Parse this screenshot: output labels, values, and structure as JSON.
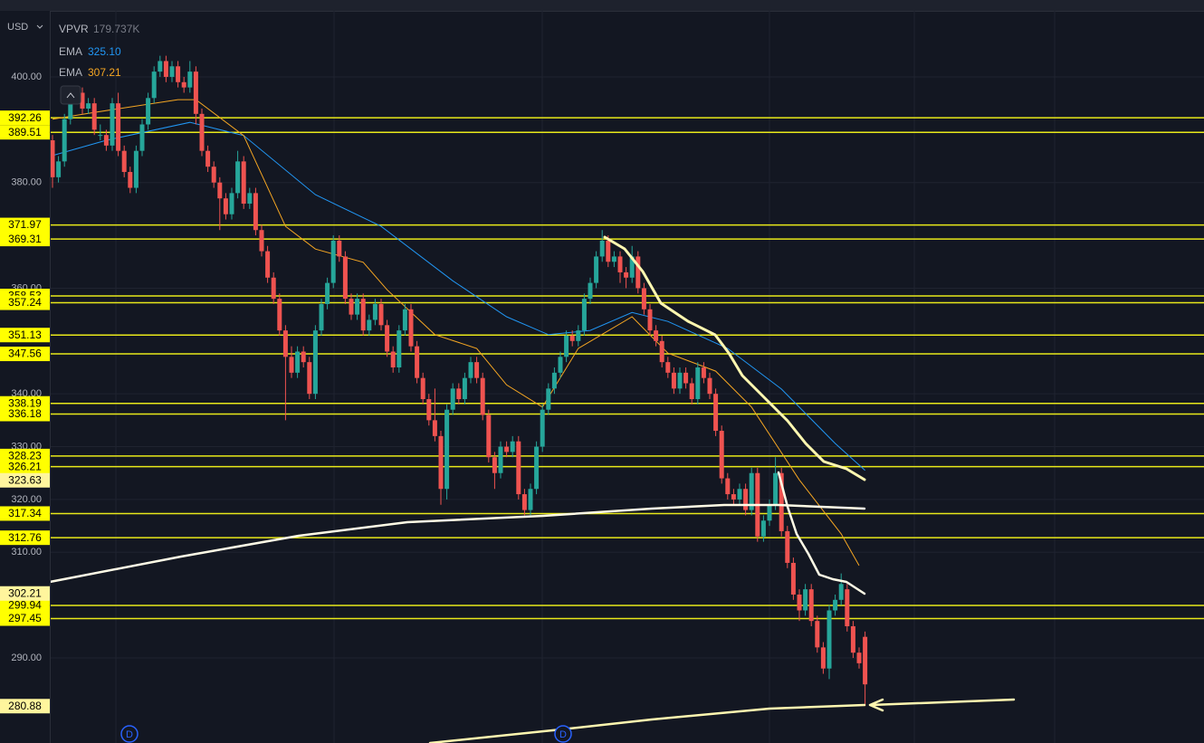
{
  "chart_data": {
    "type": "candlestick",
    "currency": "USD",
    "volume_profile": {
      "name": "VPVR",
      "value": "179.737K"
    },
    "ylim": [
      273.9,
      412.5
    ],
    "yticks": [
      {
        "value": 400,
        "label": "400.00"
      },
      {
        "value": 380,
        "label": "380.00"
      },
      {
        "value": 360,
        "label": "360.00"
      },
      {
        "value": 340,
        "label": "340.00"
      },
      {
        "value": 330,
        "label": "330.00"
      },
      {
        "value": 320,
        "label": "320.00"
      },
      {
        "value": 310,
        "label": "310.00"
      },
      {
        "value": 290,
        "label": "290.00"
      }
    ],
    "grid": true,
    "up_color": "#26a69a",
    "down_color": "#ef5350",
    "level_color": "#e8e81a",
    "levels": [
      392.26,
      389.51,
      371.97,
      369.31,
      358.53,
      357.24,
      351.13,
      347.56,
      338.19,
      336.18,
      328.23,
      326.21,
      317.34,
      312.76,
      299.94,
      297.45
    ],
    "price_labels": [
      323.63,
      302.21,
      280.88
    ],
    "events": [
      "D",
      "D"
    ],
    "emas": [
      {
        "name": "EMA",
        "value_label": "325.10",
        "color": "#2196f3",
        "x": [
          0,
          9,
          23,
          32,
          44,
          55,
          67,
          76,
          83,
          90,
          97,
          103,
          113,
          122,
          131,
          136
        ],
        "values": [
          385.1,
          388,
          391.4,
          388.9,
          377.7,
          371.7,
          361.4,
          354.6,
          351.2,
          352,
          355.4,
          353.7,
          348.6,
          340.9,
          330.6,
          325.5
        ]
      },
      {
        "name": "EMA",
        "value_label": "307.21",
        "color": "#f5a623",
        "x": [
          0,
          6,
          21,
          24,
          32,
          39,
          44,
          52,
          56,
          64,
          71,
          76,
          82,
          88,
          97,
          103,
          111,
          117,
          125,
          132,
          135
        ],
        "values": [
          392,
          393.1,
          395.7,
          395.7,
          388.9,
          371.7,
          367.4,
          364.9,
          359.7,
          351.2,
          348.6,
          341.7,
          337.5,
          348.6,
          354.6,
          347.7,
          344.3,
          337.5,
          323.7,
          313.5,
          307.5
        ]
      }
    ],
    "candles": [
      [
        388,
        389,
        379,
        381
      ],
      [
        381,
        385,
        380,
        384
      ],
      [
        384,
        393,
        383,
        392
      ],
      [
        392,
        397,
        391,
        396
      ],
      [
        396,
        398,
        395,
        397
      ],
      [
        397,
        398,
        393,
        394
      ],
      [
        394,
        396,
        393,
        395
      ],
      [
        395,
        396,
        389,
        390
      ],
      [
        389,
        391,
        388,
        389
      ],
      [
        389,
        390,
        386,
        387
      ],
      [
        387,
        396,
        386,
        395
      ],
      [
        395,
        397,
        385,
        386
      ],
      [
        386,
        387,
        381,
        382
      ],
      [
        382,
        383,
        378,
        379
      ],
      [
        379,
        387,
        378,
        386
      ],
      [
        386,
        392,
        385,
        391
      ],
      [
        391,
        397,
        390,
        396
      ],
      [
        396,
        402,
        395,
        401
      ],
      [
        401,
        404,
        400,
        403
      ],
      [
        403,
        404,
        399,
        400
      ],
      [
        400,
        403,
        399,
        402
      ],
      [
        402,
        403,
        398,
        399
      ],
      [
        399,
        400,
        397,
        398
      ],
      [
        398,
        403,
        397,
        401
      ],
      [
        401,
        402,
        391,
        393
      ],
      [
        393,
        394,
        385,
        386
      ],
      [
        386,
        387,
        382,
        383
      ],
      [
        383,
        384,
        379,
        380
      ],
      [
        380,
        381,
        371,
        377
      ],
      [
        377,
        378,
        373,
        374
      ],
      [
        374,
        379,
        373,
        378
      ],
      [
        378,
        386,
        377,
        384
      ],
      [
        384,
        385,
        375,
        376
      ],
      [
        376,
        379,
        375,
        378
      ],
      [
        378,
        379,
        370,
        371
      ],
      [
        371,
        372,
        366,
        367
      ],
      [
        367,
        368,
        361,
        362
      ],
      [
        362,
        363,
        357,
        358
      ],
      [
        358,
        359,
        351,
        352
      ],
      [
        352,
        353,
        335,
        347
      ],
      [
        347,
        349,
        343,
        344
      ],
      [
        344,
        349,
        343,
        348
      ],
      [
        348,
        349,
        345,
        346
      ],
      [
        346,
        347,
        339,
        340
      ],
      [
        340,
        353,
        339,
        352
      ],
      [
        352,
        358,
        351,
        357
      ],
      [
        357,
        362,
        356,
        361
      ],
      [
        361,
        370,
        360,
        369
      ],
      [
        369,
        370,
        365,
        366
      ],
      [
        366,
        367,
        357,
        358
      ],
      [
        358,
        359,
        354,
        355
      ],
      [
        355,
        359,
        354,
        358
      ],
      [
        358,
        359,
        351,
        352
      ],
      [
        352,
        355,
        351,
        354
      ],
      [
        354,
        358,
        353,
        357
      ],
      [
        357,
        358,
        352,
        353
      ],
      [
        353,
        354,
        347,
        348
      ],
      [
        348,
        349,
        344,
        345
      ],
      [
        345,
        353,
        344,
        352
      ],
      [
        352,
        357,
        351,
        356
      ],
      [
        356,
        357,
        348,
        349
      ],
      [
        349,
        350,
        342,
        343
      ],
      [
        343,
        344,
        338,
        339
      ],
      [
        339,
        340,
        334,
        335
      ],
      [
        335,
        341,
        331,
        332
      ],
      [
        332,
        333,
        319,
        322
      ],
      [
        322,
        338,
        320,
        337
      ],
      [
        337,
        342,
        336,
        341
      ],
      [
        341,
        342,
        338,
        339
      ],
      [
        339,
        344,
        338,
        343
      ],
      [
        343,
        347,
        342,
        346
      ],
      [
        346,
        347,
        342,
        343
      ],
      [
        343,
        344,
        335,
        336
      ],
      [
        336,
        337,
        327,
        328
      ],
      [
        328,
        329,
        322,
        325
      ],
      [
        325,
        331,
        324,
        330
      ],
      [
        330,
        331,
        328,
        329
      ],
      [
        329,
        332,
        328,
        331
      ],
      [
        331,
        332,
        320,
        321
      ],
      [
        321,
        322,
        317,
        318
      ],
      [
        318,
        323,
        317,
        322
      ],
      [
        322,
        331,
        321,
        330
      ],
      [
        330,
        338,
        329,
        337
      ],
      [
        337,
        342,
        336,
        341
      ],
      [
        341,
        345,
        340,
        344
      ],
      [
        344,
        348,
        343,
        347
      ],
      [
        347,
        352,
        346,
        351
      ],
      [
        351,
        352,
        349,
        350
      ],
      [
        350,
        353,
        349,
        352
      ],
      [
        352,
        359,
        351,
        358
      ],
      [
        358,
        362,
        357,
        361
      ],
      [
        361,
        367,
        360,
        366
      ],
      [
        366,
        371,
        365,
        369
      ],
      [
        369,
        370,
        364,
        365
      ],
      [
        365,
        367,
        364,
        366
      ],
      [
        366,
        367,
        361,
        363
      ],
      [
        363,
        364,
        360,
        362
      ],
      [
        362,
        368,
        361,
        366
      ],
      [
        366,
        367,
        359,
        360
      ],
      [
        360,
        361,
        355,
        356
      ],
      [
        356,
        357,
        351,
        352
      ],
      [
        352,
        353,
        349,
        350
      ],
      [
        350,
        351,
        345,
        346
      ],
      [
        346,
        347,
        343,
        344
      ],
      [
        344,
        345,
        340,
        341
      ],
      [
        341,
        345,
        340,
        344
      ],
      [
        344,
        345,
        341,
        342
      ],
      [
        342,
        343,
        338,
        339
      ],
      [
        339,
        346,
        338,
        345
      ],
      [
        345,
        346,
        342,
        343
      ],
      [
        343,
        344,
        339,
        340
      ],
      [
        340,
        341,
        332,
        333
      ],
      [
        333,
        334,
        323,
        324
      ],
      [
        324,
        325,
        320,
        321
      ],
      [
        321,
        322,
        319,
        320
      ],
      [
        320,
        323,
        319,
        322
      ],
      [
        322,
        323,
        317,
        318
      ],
      [
        318,
        326,
        317,
        325
      ],
      [
        325,
        326,
        312,
        313
      ],
      [
        313,
        317,
        312,
        316
      ],
      [
        316,
        320,
        315,
        319
      ],
      [
        319,
        328,
        318,
        325
      ],
      [
        325,
        326,
        313,
        314
      ],
      [
        314,
        315,
        307,
        308
      ],
      [
        308,
        309,
        301,
        302
      ],
      [
        302,
        303,
        297,
        299
      ],
      [
        299,
        304,
        298,
        303
      ],
      [
        303,
        304,
        296,
        297
      ],
      [
        297,
        298,
        291,
        292
      ],
      [
        292,
        293,
        287,
        288
      ],
      [
        288,
        300,
        286,
        299
      ],
      [
        299,
        302,
        298,
        301
      ],
      [
        301,
        306,
        300,
        304
      ],
      [
        303,
        304,
        295,
        296
      ],
      [
        296,
        297,
        290,
        291
      ],
      [
        291,
        292,
        288,
        289
      ],
      [
        294,
        295,
        280.88,
        285
      ]
    ]
  }
}
